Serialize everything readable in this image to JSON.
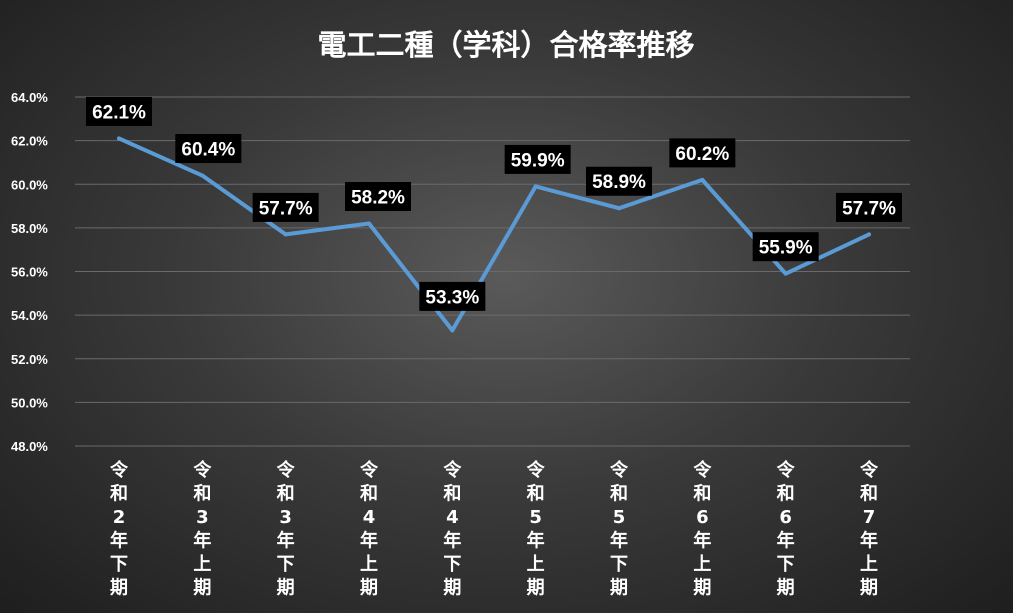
{
  "chart_data": {
    "type": "line",
    "title": "電工二種（学科）合格率推移",
    "categories": [
      "令和2年下期",
      "令和3年上期",
      "令和3年下期",
      "令和4年上期",
      "令和4年下期",
      "令和5年上期",
      "令和5年下期",
      "令和6年上期",
      "令和6年下期",
      "令和7年上期"
    ],
    "series": [
      {
        "values": [
          62.1,
          60.4,
          57.7,
          58.2,
          53.3,
          59.9,
          58.9,
          60.2,
          55.9,
          57.7
        ]
      }
    ],
    "data_labels": [
      "62.1%",
      "60.4%",
      "57.7%",
      "58.2%",
      "53.3%",
      "59.9%",
      "58.9%",
      "60.2%",
      "55.9%",
      "57.7%"
    ],
    "y_ticks": [
      48.0,
      50.0,
      52.0,
      54.0,
      56.0,
      58.0,
      60.0,
      62.0,
      64.0
    ],
    "y_tick_labels": [
      "48.0%",
      "50.0%",
      "52.0%",
      "54.0%",
      "56.0%",
      "58.0%",
      "60.0%",
      "62.0%",
      "64.0%"
    ],
    "ylim": [
      48,
      64
    ],
    "xlabel": "",
    "ylabel": "",
    "grid": true,
    "legend": "none",
    "colors": {
      "line": "#5b9bd5",
      "label_bg": "#000000",
      "text": "#ffffff",
      "grid": "#6a6a6a"
    }
  }
}
